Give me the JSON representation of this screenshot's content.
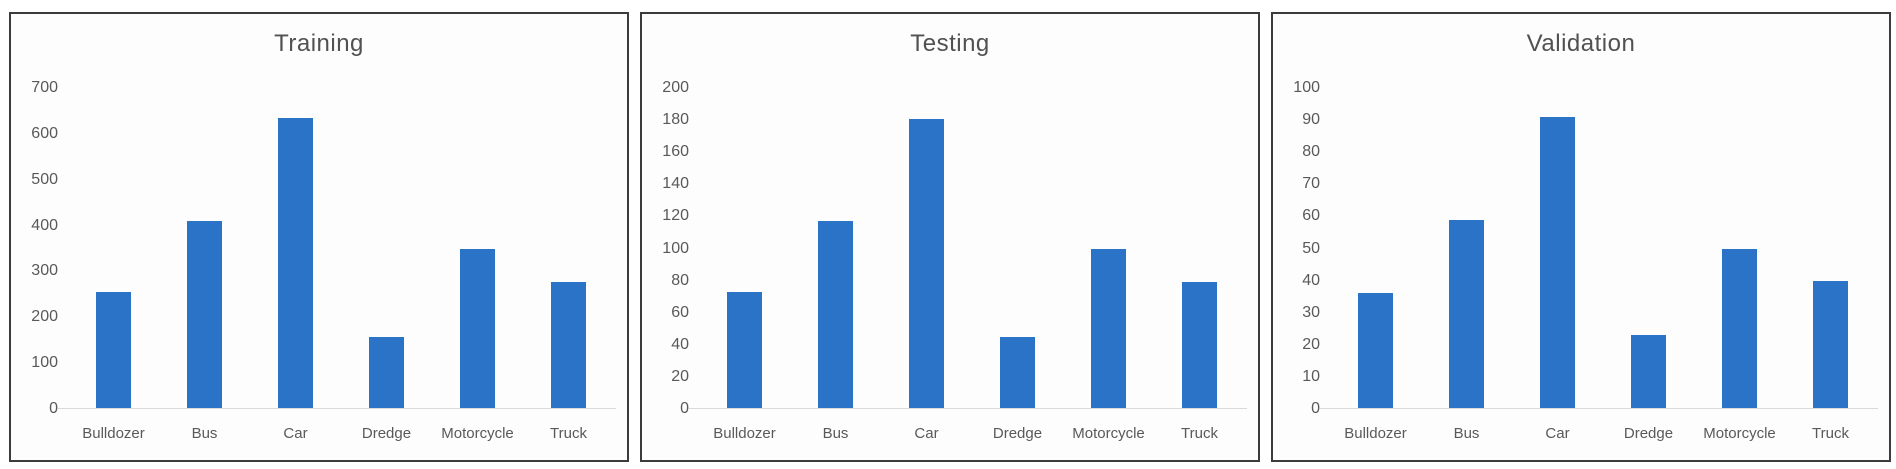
{
  "theme": {
    "bar_color": "#2A73C7",
    "panel_border_color": "#3b3b3b",
    "title_color": "#515151",
    "tick_color": "#595959",
    "axis_line_color": "#d9d9d9",
    "background_color": "#ffffff"
  },
  "chart_data": [
    {
      "type": "bar",
      "title": "Training",
      "categories": [
        "Bulldozer",
        "Bus",
        "Car",
        "Dredge",
        "Motorcycle",
        "Truck"
      ],
      "values": [
        255,
        410,
        635,
        158,
        350,
        278
      ],
      "xlabel": "",
      "ylabel": "",
      "ylim": [
        0,
        700
      ],
      "ytick_step": 100,
      "grid": false,
      "legend": false,
      "bar_color": "#2A73C7"
    },
    {
      "type": "bar",
      "title": "Testing",
      "categories": [
        "Bulldozer",
        "Bus",
        "Car",
        "Dredge",
        "Motorcycle",
        "Truck"
      ],
      "values": [
        73,
        117,
        181,
        45,
        100,
        79
      ],
      "xlabel": "",
      "ylabel": "",
      "ylim": [
        0,
        200
      ],
      "ytick_step": 20,
      "grid": false,
      "legend": false,
      "bar_color": "#2A73C7"
    },
    {
      "type": "bar",
      "title": "Validation",
      "categories": [
        "Bulldozer",
        "Bus",
        "Car",
        "Dredge",
        "Motorcycle",
        "Truck"
      ],
      "values": [
        36,
        59,
        91,
        23,
        50,
        40
      ],
      "xlabel": "",
      "ylabel": "",
      "ylim": [
        0,
        100
      ],
      "ytick_step": 10,
      "grid": false,
      "legend": false,
      "bar_color": "#2A73C7"
    }
  ]
}
